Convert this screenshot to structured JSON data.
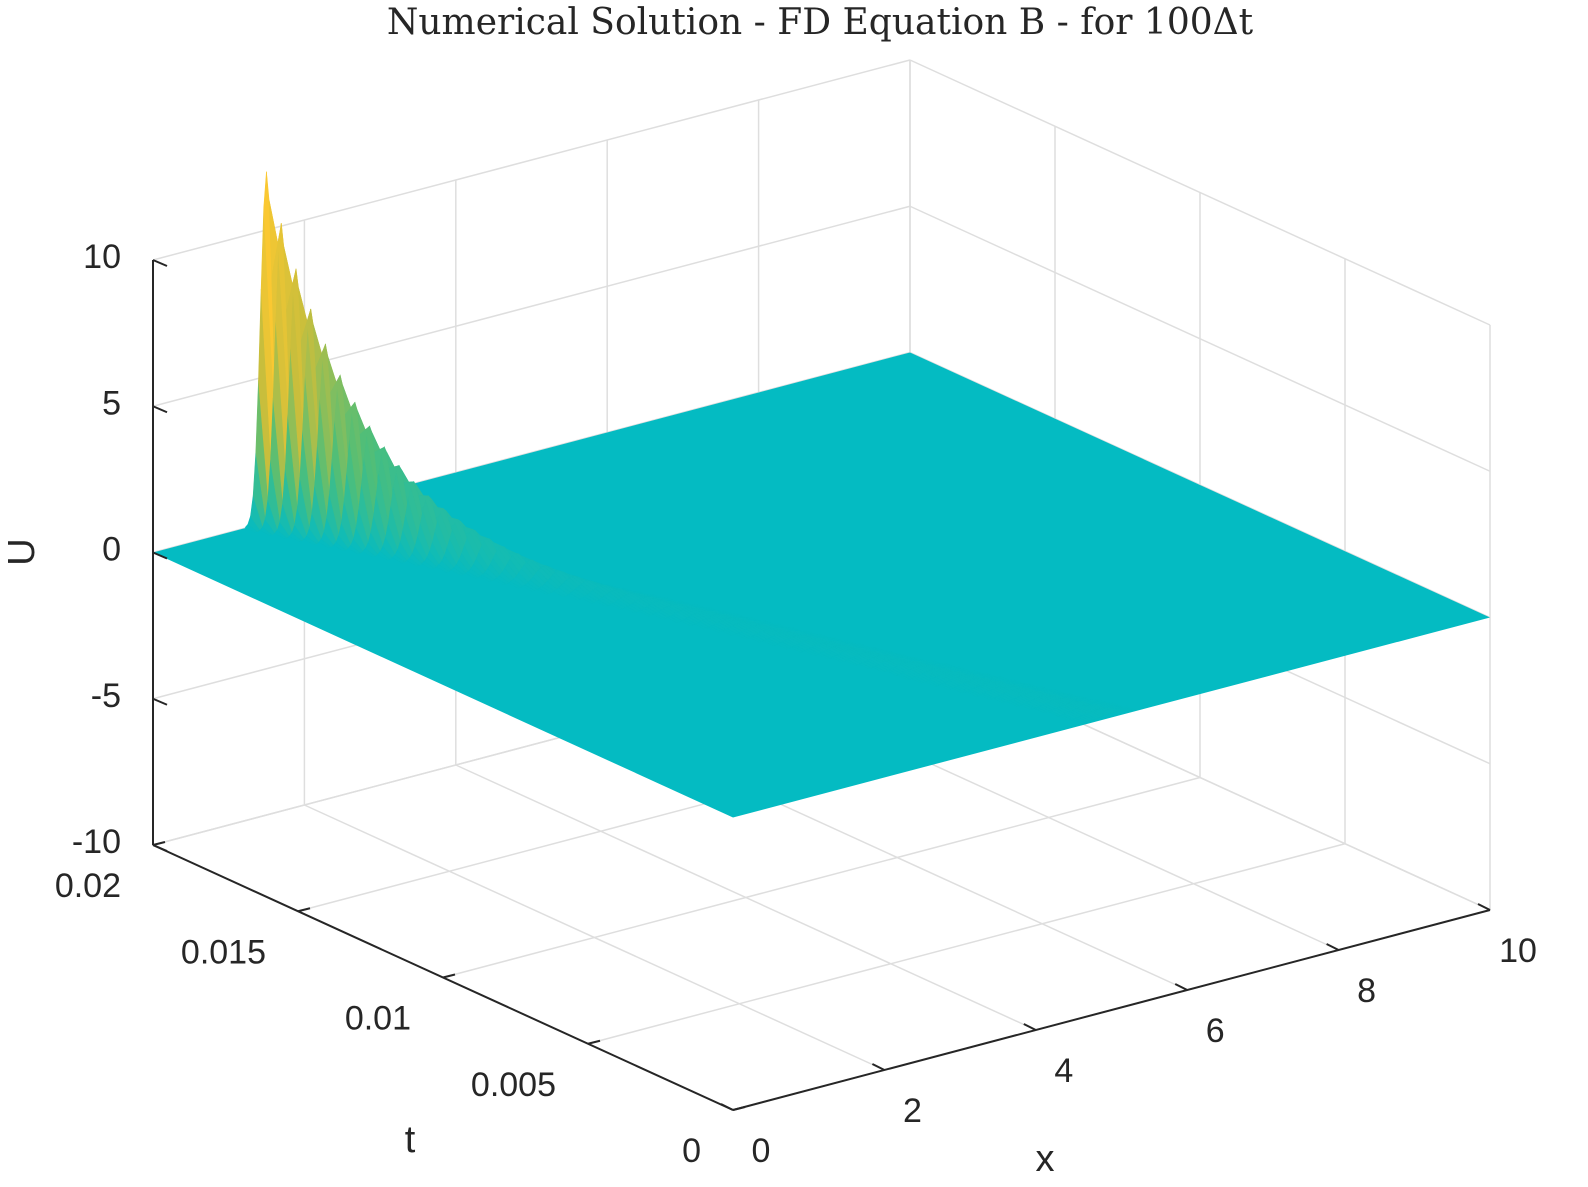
{
  "chart_data": {
    "type": "surface",
    "title": "Numerical Solution - FD Equation B - for 100Δt",
    "xlabel": "x",
    "ylabel": "t",
    "zlabel": "U",
    "xlim": [
      0,
      10
    ],
    "ylim": [
      0,
      0.02
    ],
    "zlim": [
      -10,
      10
    ],
    "x_ticks": [
      0,
      2,
      4,
      6,
      8,
      10
    ],
    "x_tick_labels": [
      "0",
      "2",
      "4",
      "6",
      "8",
      "10"
    ],
    "y_ticks": [
      0,
      0.005,
      0.01,
      0.015,
      0.02
    ],
    "y_tick_labels": [
      "0",
      "0.005",
      "0.01",
      "0.015",
      "0.02"
    ],
    "z_ticks": [
      -10,
      -5,
      0,
      5,
      10
    ],
    "z_tick_labels": [
      "-10",
      "-5",
      "0",
      "5",
      "10"
    ],
    "grid": true,
    "colormap": "parula",
    "surface_base_color": "#04bbc2",
    "peak": {
      "x": 1.5,
      "t": 0.02,
      "u": 12
    },
    "ridge": [
      {
        "t": 0.02,
        "x": 1.5,
        "u": 12
      },
      {
        "t": 0.015,
        "x": 2.5,
        "u": 2.2
      },
      {
        "t": 0.01,
        "x": 3.4,
        "u": 0.9
      },
      {
        "t": 0.005,
        "x": 4.2,
        "u": 0.5
      },
      {
        "t": 0,
        "x": 5.0,
        "u": 0.3
      }
    ]
  }
}
